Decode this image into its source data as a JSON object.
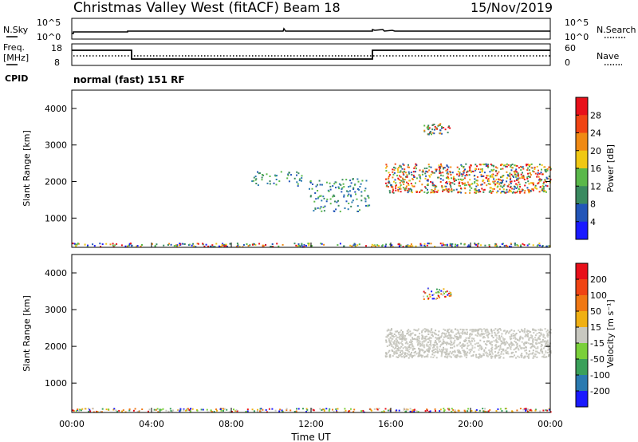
{
  "header": {
    "title": "Christmas Valley West (fitACF)",
    "beam": "Beam 18",
    "date": "15/Nov/2019"
  },
  "sky_panel": {
    "left_label": "N.Sky",
    "left_ticks": [
      "10^5",
      "10^0"
    ],
    "right_label": "N.Search",
    "right_ticks": [
      "10^5",
      "10^0"
    ]
  },
  "freq_panel": {
    "left_label_1": "Freq.",
    "left_label_2": "[MHz]",
    "left_ticks": [
      "18",
      "8"
    ],
    "right_label": "Nave",
    "right_ticks": [
      "60",
      "0"
    ]
  },
  "cpid": {
    "label": "CPID",
    "value": "normal (fast) 151 RF"
  },
  "chart_data": [
    {
      "type": "heatmap",
      "quantity": "power",
      "ylabel": "Slant Range [km]",
      "yticks": [
        1000,
        2000,
        3000,
        4000
      ],
      "ylim": [
        200,
        4500
      ],
      "xlim": [
        0,
        24
      ],
      "xticks": [
        "00:00",
        "04:00",
        "08:00",
        "12:00",
        "16:00",
        "20:00",
        "00:00"
      ],
      "colorbar": {
        "label": "Power [dB]",
        "ticks": [
          "4",
          "8",
          "12",
          "16",
          "20",
          "24",
          "28"
        ],
        "colors": [
          "#1a1aff",
          "#2255b8",
          "#3a8a60",
          "#5ab84a",
          "#f0c814",
          "#f08a14",
          "#f04414",
          "#e8101a"
        ]
      },
      "echo_regions": [
        {
          "t0": 0.0,
          "t1": 24.0,
          "r0": 230,
          "r1": 330,
          "level": "mixed"
        },
        {
          "t0": 15.7,
          "t1": 24.0,
          "r0": 1700,
          "r1": 2500,
          "level": "strong"
        },
        {
          "t0": 17.6,
          "t1": 19.0,
          "r0": 3300,
          "r1": 3600,
          "level": "moderate"
        },
        {
          "t0": 9.0,
          "t1": 11.6,
          "r0": 1900,
          "r1": 2300,
          "level": "weak"
        },
        {
          "t0": 11.8,
          "t1": 14.9,
          "r0": 1200,
          "r1": 2100,
          "level": "weak"
        }
      ]
    },
    {
      "type": "heatmap",
      "quantity": "velocity",
      "ylabel": "Slant Range [km]",
      "yticks": [
        1000,
        2000,
        3000,
        4000
      ],
      "ylim": [
        200,
        4500
      ],
      "xlim": [
        0,
        24
      ],
      "xticks": [
        "00:00",
        "04:00",
        "08:00",
        "12:00",
        "16:00",
        "20:00",
        "00:00"
      ],
      "xlabel": "Time UT",
      "colorbar": {
        "label": "Velocity [m s⁻¹]",
        "ticks": [
          "200",
          "100",
          "50",
          "15",
          "-15",
          "-50",
          "-100",
          "-200"
        ],
        "colors": [
          "#1a1aff",
          "#2a7ab0",
          "#3aa05a",
          "#7ad03a",
          "#c8c8c0",
          "#f0b014",
          "#f07814",
          "#f04414",
          "#e8101a"
        ]
      },
      "echo_regions": [
        {
          "t0": 0.0,
          "t1": 24.0,
          "r0": 230,
          "r1": 330,
          "level": "mixed"
        },
        {
          "t0": 15.7,
          "t1": 24.0,
          "r0": 1700,
          "r1": 2500,
          "level": "ground-scatter"
        },
        {
          "t0": 17.6,
          "t1": 19.0,
          "r0": 3300,
          "r1": 3600,
          "level": "mixed"
        }
      ]
    }
  ]
}
